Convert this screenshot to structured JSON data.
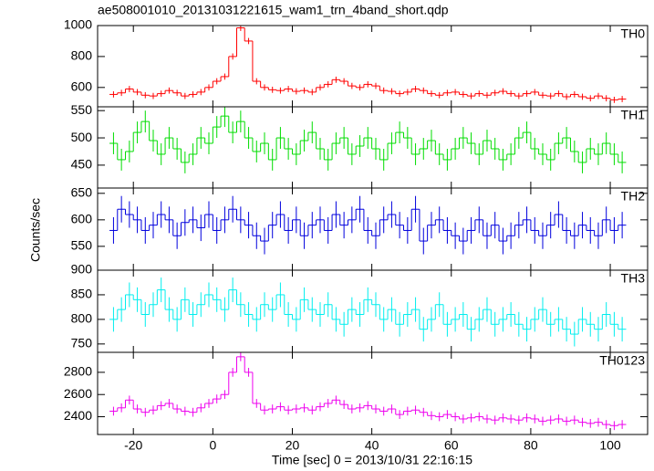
{
  "chart_data": [
    {
      "type": "histogram-step",
      "title": "ae508001010_20131031221615_wam1_trn_4band_short.qdp",
      "x": [
        -25,
        -23,
        -21,
        -19,
        -17,
        -15,
        -13,
        -11,
        -9,
        -7,
        -5,
        -3,
        -1,
        1,
        3,
        5,
        7,
        9,
        11,
        13,
        15,
        17,
        19,
        21,
        23,
        25,
        27,
        29,
        31,
        33,
        35,
        37,
        39,
        41,
        43,
        45,
        47,
        49,
        51,
        53,
        55,
        57,
        59,
        61,
        63,
        65,
        67,
        69,
        71,
        73,
        75,
        77,
        79,
        81,
        83,
        85,
        87,
        89,
        91,
        93,
        95,
        97,
        99,
        101,
        103
      ],
      "series": [
        {
          "name": "TH0",
          "color": "#ff0000",
          "error": 20,
          "values": [
            555,
            565,
            590,
            570,
            550,
            545,
            560,
            580,
            565,
            545,
            555,
            570,
            600,
            640,
            670,
            800,
            985,
            900,
            640,
            600,
            585,
            580,
            590,
            575,
            580,
            570,
            600,
            620,
            650,
            640,
            610,
            600,
            620,
            610,
            580,
            575,
            560,
            570,
            590,
            580,
            560,
            550,
            565,
            570,
            555,
            545,
            560,
            550,
            565,
            575,
            560,
            545,
            560,
            570,
            550,
            545,
            560,
            540,
            555,
            540,
            530,
            545,
            530,
            520,
            525
          ]
        }
      ],
      "ylim": [
        475,
        1000
      ],
      "yticks": [
        600,
        800,
        1000
      ]
    },
    {
      "type": "histogram-step",
      "x": [
        -25,
        -23,
        -21,
        -19,
        -17,
        -15,
        -13,
        -11,
        -9,
        -7,
        -5,
        -3,
        -1,
        1,
        3,
        5,
        7,
        9,
        11,
        13,
        15,
        17,
        19,
        21,
        23,
        25,
        27,
        29,
        31,
        33,
        35,
        37,
        39,
        41,
        43,
        45,
        47,
        49,
        51,
        53,
        55,
        57,
        59,
        61,
        63,
        65,
        67,
        69,
        71,
        73,
        75,
        77,
        79,
        81,
        83,
        85,
        87,
        89,
        91,
        93,
        95,
        97,
        99,
        101,
        103
      ],
      "series": [
        {
          "name": "TH1",
          "color": "#00dd00",
          "error": 20,
          "values": [
            490,
            460,
            475,
            510,
            530,
            495,
            470,
            500,
            480,
            455,
            470,
            500,
            490,
            520,
            540,
            510,
            530,
            500,
            475,
            490,
            460,
            500,
            480,
            470,
            495,
            510,
            480,
            460,
            490,
            500,
            470,
            485,
            500,
            480,
            460,
            490,
            510,
            500,
            470,
            480,
            495,
            470,
            460,
            480,
            500,
            490,
            470,
            495,
            480,
            460,
            470,
            500,
            510,
            480,
            470,
            460,
            490,
            500,
            475,
            455,
            480,
            470,
            490,
            470,
            455
          ]
        }
      ],
      "ylim": [
        408,
        557
      ],
      "yticks": [
        450,
        500,
        550
      ]
    },
    {
      "type": "histogram-step",
      "ylabel": "Counts/sec",
      "x": [
        -25,
        -23,
        -21,
        -19,
        -17,
        -15,
        -13,
        -11,
        -9,
        -7,
        -5,
        -3,
        -1,
        1,
        3,
        5,
        7,
        9,
        11,
        13,
        15,
        17,
        19,
        21,
        23,
        25,
        27,
        29,
        31,
        33,
        35,
        37,
        39,
        41,
        43,
        45,
        47,
        49,
        51,
        53,
        55,
        57,
        59,
        61,
        63,
        65,
        67,
        69,
        71,
        73,
        75,
        77,
        79,
        81,
        83,
        85,
        87,
        89,
        91,
        93,
        95,
        97,
        99,
        101,
        103
      ],
      "series": [
        {
          "name": "TH2",
          "color": "#0000dd",
          "error": 25,
          "values": [
            580,
            620,
            610,
            600,
            580,
            590,
            610,
            600,
            570,
            595,
            600,
            585,
            610,
            580,
            600,
            620,
            600,
            590,
            570,
            560,
            590,
            610,
            580,
            600,
            570,
            590,
            600,
            580,
            610,
            590,
            600,
            620,
            580,
            570,
            600,
            610,
            590,
            580,
            620,
            560,
            590,
            600,
            580,
            570,
            560,
            580,
            600,
            570,
            590,
            560,
            570,
            590,
            600,
            580,
            570,
            590,
            610,
            580,
            570,
            590,
            580,
            570,
            600,
            580,
            590
          ]
        }
      ],
      "ylim": [
        505,
        660
      ],
      "yticks": [
        550,
        600,
        650
      ]
    },
    {
      "type": "histogram-step",
      "x": [
        -25,
        -23,
        -21,
        -19,
        -17,
        -15,
        -13,
        -11,
        -9,
        -7,
        -5,
        -3,
        -1,
        1,
        3,
        5,
        7,
        9,
        11,
        13,
        15,
        17,
        19,
        21,
        23,
        25,
        27,
        29,
        31,
        33,
        35,
        37,
        39,
        41,
        43,
        45,
        47,
        49,
        51,
        53,
        55,
        57,
        59,
        61,
        63,
        65,
        67,
        69,
        71,
        73,
        75,
        77,
        79,
        81,
        83,
        85,
        87,
        89,
        91,
        93,
        95,
        97,
        99,
        101,
        103
      ],
      "series": [
        {
          "name": "TH3",
          "color": "#00eeee",
          "error": 25,
          "values": [
            800,
            820,
            850,
            840,
            810,
            830,
            860,
            820,
            800,
            840,
            810,
            830,
            850,
            840,
            820,
            860,
            830,
            810,
            800,
            830,
            820,
            850,
            810,
            800,
            840,
            820,
            810,
            830,
            800,
            790,
            820,
            810,
            840,
            830,
            800,
            820,
            790,
            810,
            820,
            780,
            800,
            830,
            790,
            800,
            810,
            780,
            800,
            820,
            790,
            800,
            810,
            790,
            780,
            800,
            820,
            790,
            800,
            780,
            770,
            800,
            790,
            780,
            810,
            790,
            780
          ]
        }
      ],
      "ylim": [
        733,
        900
      ],
      "yticks": [
        750,
        800,
        850,
        900
      ]
    },
    {
      "type": "histogram-step",
      "xlabel": "Time [sec] 0 = 2013/10/31 22:16:15",
      "x": [
        -25,
        -23,
        -21,
        -19,
        -17,
        -15,
        -13,
        -11,
        -9,
        -7,
        -5,
        -3,
        -1,
        1,
        3,
        5,
        7,
        9,
        11,
        13,
        15,
        17,
        19,
        21,
        23,
        25,
        27,
        29,
        31,
        33,
        35,
        37,
        39,
        41,
        43,
        45,
        47,
        49,
        51,
        53,
        55,
        57,
        59,
        61,
        63,
        65,
        67,
        69,
        71,
        73,
        75,
        77,
        79,
        81,
        83,
        85,
        87,
        89,
        91,
        93,
        95,
        97,
        99,
        101,
        103
      ],
      "series": [
        {
          "name": "TH0123",
          "color": "#ee00ee",
          "error": 40,
          "values": [
            2450,
            2480,
            2550,
            2470,
            2440,
            2460,
            2500,
            2520,
            2470,
            2450,
            2440,
            2480,
            2520,
            2560,
            2600,
            2800,
            2940,
            2800,
            2520,
            2460,
            2470,
            2490,
            2460,
            2470,
            2480,
            2460,
            2490,
            2520,
            2550,
            2510,
            2470,
            2480,
            2500,
            2470,
            2450,
            2470,
            2420,
            2450,
            2460,
            2440,
            2410,
            2400,
            2420,
            2400,
            2380,
            2390,
            2400,
            2380,
            2370,
            2390,
            2380,
            2370,
            2390,
            2380,
            2360,
            2370,
            2380,
            2360,
            2370,
            2350,
            2340,
            2350,
            2330,
            2320,
            2330
          ]
        }
      ],
      "ylim": [
        2240,
        2980
      ],
      "yticks": [
        2400,
        2600,
        2800
      ],
      "xlim": [
        -29,
        109.4
      ],
      "xticks": [
        -20,
        0,
        20,
        40,
        60,
        80,
        100
      ]
    }
  ]
}
